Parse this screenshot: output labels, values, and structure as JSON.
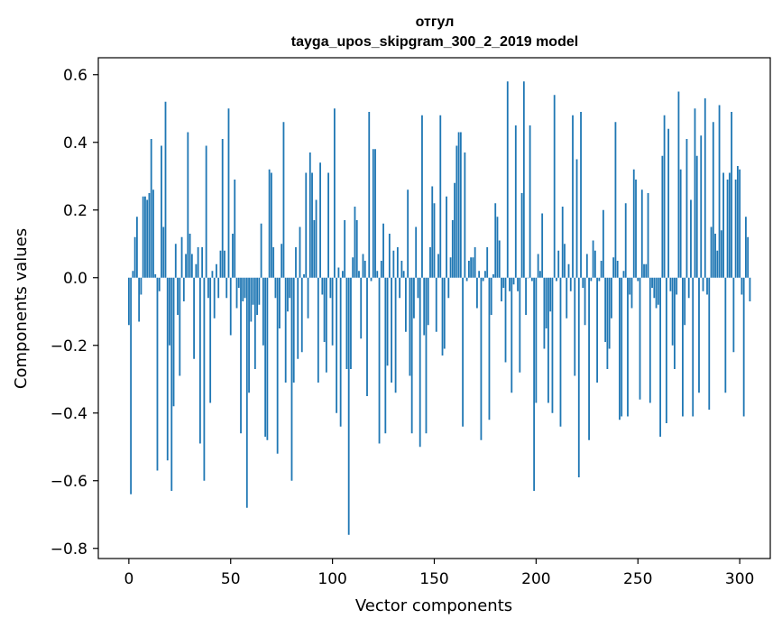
{
  "chart_data": {
    "type": "bar",
    "title": "отгул",
    "subtitle": "tayga_upos_skipgram_300_2_2019 model",
    "xlabel": "Vector components",
    "ylabel": "Components values",
    "xlim": [
      -15,
      315
    ],
    "ylim": [
      -0.83,
      0.65
    ],
    "xticks": [
      0,
      50,
      100,
      150,
      200,
      250,
      300
    ],
    "yticks": [
      -0.8,
      -0.6,
      -0.4,
      -0.2,
      0.0,
      0.2,
      0.4,
      0.6
    ],
    "ytick_labels": [
      "−0.8",
      "−0.6",
      "−0.4",
      "−0.2",
      "0.0",
      "0.2",
      "0.4",
      "0.6"
    ],
    "xtick_labels": [
      "0",
      "50",
      "100",
      "150",
      "200",
      "250",
      "300"
    ],
    "bar_color": "#1f77b4",
    "values": [
      -0.14,
      -0.64,
      0.02,
      0.12,
      0.18,
      -0.13,
      -0.05,
      0.24,
      0.24,
      0.23,
      0.25,
      0.41,
      0.26,
      0.01,
      -0.57,
      -0.04,
      0.39,
      0.15,
      0.52,
      -0.54,
      -0.2,
      -0.63,
      -0.38,
      0.1,
      -0.11,
      -0.29,
      0.12,
      -0.07,
      0.07,
      0.43,
      0.13,
      0.07,
      -0.24,
      0.04,
      0.09,
      -0.49,
      0.09,
      -0.6,
      0.39,
      -0.06,
      -0.37,
      0.02,
      -0.12,
      0.04,
      -0.06,
      0.08,
      0.41,
      0.08,
      -0.06,
      0.5,
      -0.17,
      0.13,
      0.29,
      -0.09,
      -0.03,
      -0.46,
      -0.07,
      -0.06,
      -0.68,
      -0.34,
      -0.13,
      -0.08,
      -0.27,
      -0.11,
      -0.08,
      0.16,
      -0.2,
      -0.47,
      -0.48,
      0.32,
      0.31,
      0.09,
      -0.06,
      -0.52,
      -0.15,
      0.1,
      0.46,
      -0.31,
      -0.1,
      -0.06,
      -0.6,
      -0.31,
      0.09,
      -0.24,
      0.15,
      -0.22,
      0.01,
      0.31,
      -0.12,
      0.37,
      0.31,
      0.17,
      0.23,
      -0.31,
      0.34,
      -0.05,
      -0.19,
      -0.28,
      0.31,
      -0.06,
      -0.2,
      0.5,
      -0.4,
      0.03,
      -0.44,
      0.02,
      0.17,
      -0.27,
      -0.76,
      -0.27,
      0.06,
      0.21,
      0.17,
      0.02,
      -0.18,
      0.07,
      0.05,
      -0.35,
      0.49,
      -0.01,
      0.38,
      0.38,
      0.02,
      -0.49,
      0.05,
      0.16,
      -0.46,
      -0.26,
      0.13,
      -0.31,
      0.08,
      -0.34,
      0.09,
      -0.06,
      0.05,
      0.02,
      -0.16,
      0.26,
      -0.29,
      -0.46,
      -0.12,
      0.15,
      -0.06,
      -0.5,
      0.48,
      -0.17,
      -0.46,
      -0.14,
      0.09,
      0.27,
      0.22,
      -0.16,
      0.07,
      0.48,
      -0.23,
      -0.21,
      0.24,
      -0.06,
      0.06,
      0.17,
      0.28,
      0.39,
      0.43,
      0.43,
      -0.44,
      0.37,
      -0.01,
      0.05,
      0.06,
      0.06,
      0.09,
      -0.09,
      0.02,
      -0.48,
      -0.01,
      0.02,
      0.09,
      -0.42,
      -0.11,
      0.01,
      0.22,
      0.18,
      0.11,
      -0.07,
      -0.03,
      -0.25,
      0.58,
      -0.04,
      -0.34,
      -0.02,
      0.45,
      -0.04,
      -0.28,
      0.25,
      0.58,
      -0.11,
      0.0,
      0.45,
      -0.01,
      -0.63,
      -0.37,
      0.07,
      0.02,
      0.19,
      -0.21,
      -0.15,
      -0.37,
      -0.1,
      -0.4,
      0.54,
      -0.01,
      0.08,
      -0.44,
      0.21,
      0.1,
      -0.12,
      0.04,
      -0.04,
      0.48,
      -0.29,
      0.35,
      -0.59,
      0.49,
      -0.03,
      -0.14,
      0.07,
      -0.48,
      -0.01,
      0.11,
      0.08,
      -0.31,
      -0.01,
      0.05,
      0.2,
      -0.19,
      -0.27,
      -0.21,
      -0.12,
      0.06,
      0.46,
      0.05,
      -0.42,
      -0.41,
      0.02,
      0.22,
      -0.41,
      -0.05,
      -0.09,
      0.32,
      0.29,
      -0.01,
      -0.36,
      0.26,
      0.04,
      0.04,
      0.25,
      -0.37,
      -0.03,
      -0.06,
      -0.09,
      -0.08,
      -0.47,
      0.36,
      0.48,
      -0.43,
      0.44,
      -0.04,
      -0.2,
      -0.27,
      -0.05,
      0.55,
      0.32,
      -0.41,
      -0.14,
      0.41,
      -0.06,
      0.23,
      -0.41,
      0.5,
      0.36,
      -0.34,
      0.42,
      -0.04,
      0.53,
      -0.05,
      -0.39,
      0.15,
      0.46,
      0.13,
      0.08,
      0.51,
      0.14,
      0.31,
      -0.34,
      0.29,
      0.31,
      0.49,
      -0.22,
      0.29,
      0.33,
      0.32,
      -0.05,
      -0.41,
      0.18,
      0.12,
      -0.07
    ]
  }
}
